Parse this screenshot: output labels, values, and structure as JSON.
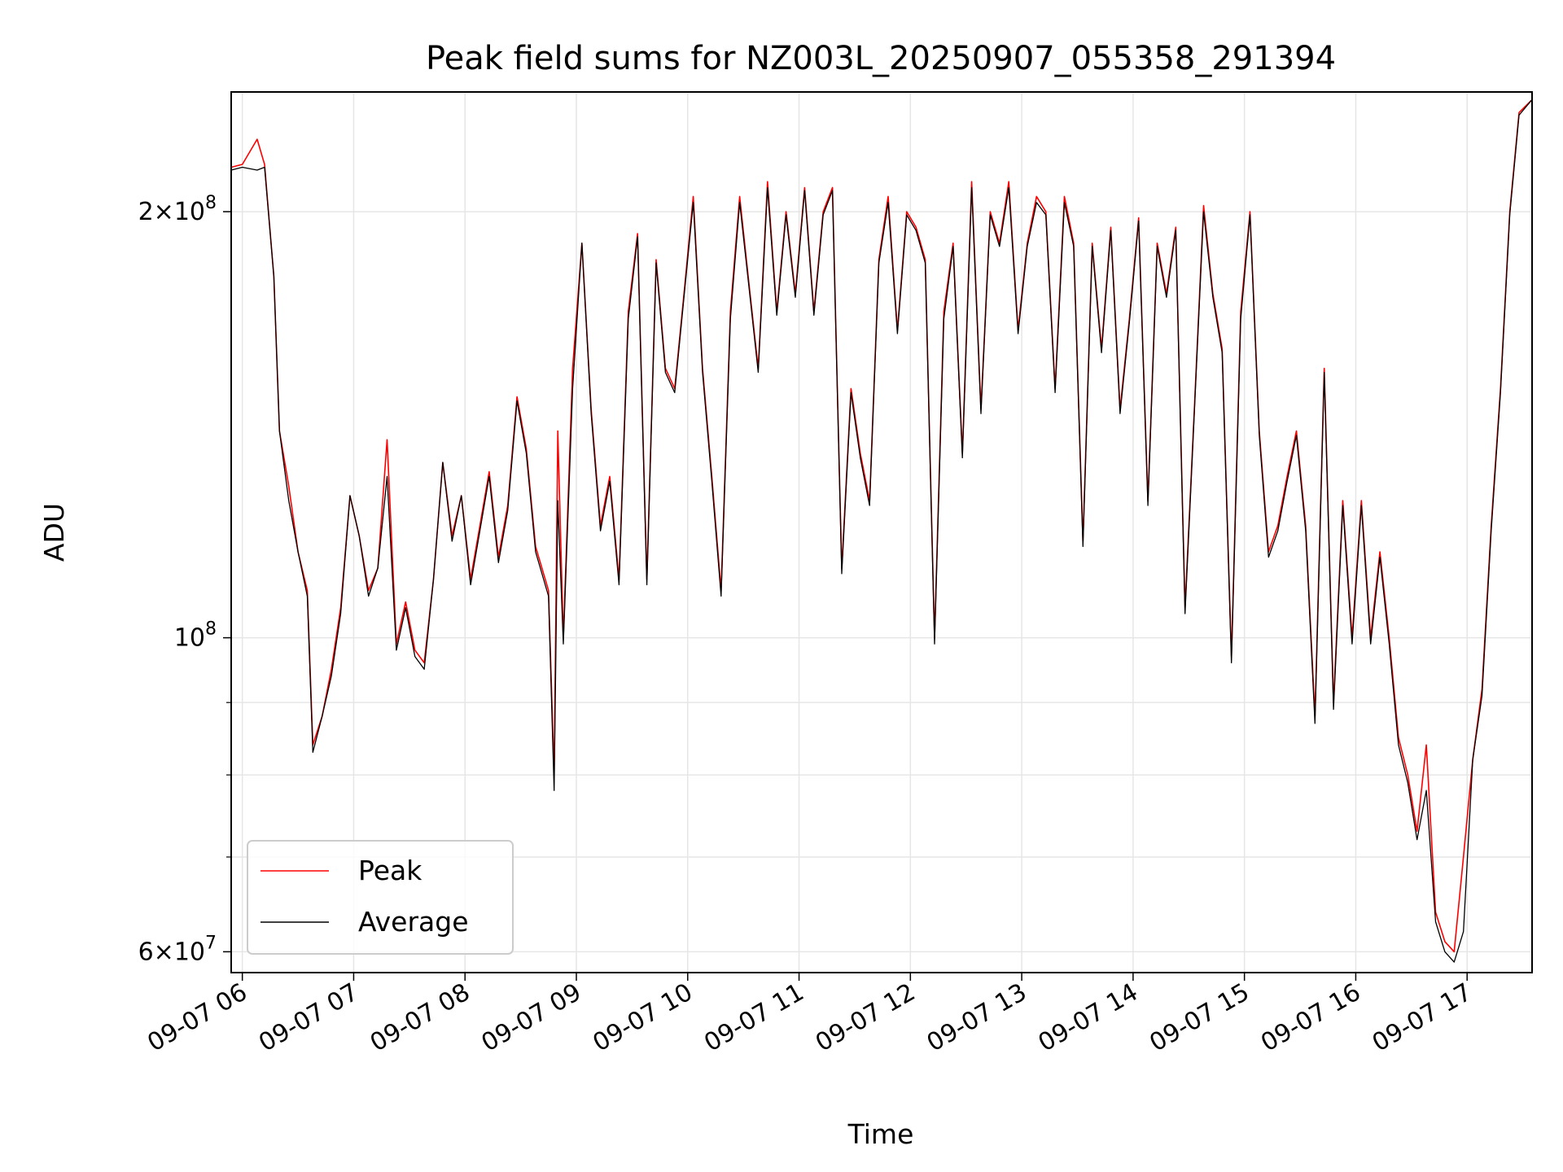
{
  "chart_data": {
    "type": "line",
    "title": "Peak field sums for NZ003L_20250907_055358_291394",
    "xlabel": "Time",
    "ylabel": "ADU",
    "xlim": [
      "09-07 05:54",
      "09-07 17:35"
    ],
    "ylim": [
      58000000,
      243000000
    ],
    "yscale": "log",
    "grid": true,
    "legend_position": "lower-left",
    "x_ticks": [
      "09-07 06",
      "09-07 07",
      "09-07 08",
      "09-07 09",
      "09-07 10",
      "09-07 11",
      "09-07 12",
      "09-07 13",
      "09-07 14",
      "09-07 15",
      "09-07 16",
      "09-07 17"
    ],
    "y_ticks": [
      {
        "value": 60000000,
        "mantissa": "6",
        "base": "10",
        "exponent": "7"
      },
      {
        "value": 100000000,
        "mantissa": "",
        "base": "10",
        "exponent": "8"
      },
      {
        "value": 200000000,
        "mantissa": "2",
        "base": "10",
        "exponent": "8"
      }
    ],
    "y_minor_ticks": [
      70000000,
      80000000,
      90000000
    ],
    "x": [
      "05:54",
      "06:00",
      "06:08",
      "06:12",
      "06:17",
      "06:20",
      "06:25",
      "06:30",
      "06:35",
      "06:38",
      "06:43",
      "06:48",
      "06:53",
      "06:58",
      "07:03",
      "07:08",
      "07:13",
      "07:18",
      "07:23",
      "07:28",
      "07:33",
      "07:38",
      "07:43",
      "07:48",
      "07:53",
      "07:58",
      "08:03",
      "08:08",
      "08:13",
      "08:18",
      "08:23",
      "08:28",
      "08:33",
      "08:38",
      "08:45",
      "08:48",
      "08:50",
      "08:53",
      "08:58",
      "09:03",
      "09:08",
      "09:13",
      "09:18",
      "09:23",
      "09:28",
      "09:33",
      "09:38",
      "09:43",
      "09:48",
      "09:53",
      "09:58",
      "10:03",
      "10:08",
      "10:13",
      "10:18",
      "10:23",
      "10:28",
      "10:33",
      "10:38",
      "10:43",
      "10:48",
      "10:53",
      "10:58",
      "11:03",
      "11:08",
      "11:13",
      "11:18",
      "11:23",
      "11:28",
      "11:33",
      "11:38",
      "11:43",
      "11:48",
      "11:53",
      "11:58",
      "12:03",
      "12:08",
      "12:13",
      "12:18",
      "12:23",
      "12:28",
      "12:33",
      "12:38",
      "12:43",
      "12:48",
      "12:53",
      "12:58",
      "13:03",
      "13:08",
      "13:13",
      "13:18",
      "13:23",
      "13:28",
      "13:33",
      "13:38",
      "13:43",
      "13:48",
      "13:53",
      "13:58",
      "14:03",
      "14:08",
      "14:13",
      "14:18",
      "14:23",
      "14:28",
      "14:33",
      "14:38",
      "14:43",
      "14:48",
      "14:53",
      "14:58",
      "15:03",
      "15:08",
      "15:13",
      "15:18",
      "15:23",
      "15:28",
      "15:33",
      "15:38",
      "15:43",
      "15:48",
      "15:53",
      "15:58",
      "16:03",
      "16:08",
      "16:13",
      "16:18",
      "16:23",
      "16:28",
      "16:33",
      "16:38",
      "16:43",
      "16:48",
      "16:53",
      "16:58",
      "17:03",
      "17:08",
      "17:13",
      "17:18",
      "17:23",
      "17:28",
      "17:35"
    ],
    "series": [
      {
        "name": "Peak",
        "color": "#ff0000",
        "values": [
          215000000,
          216000000,
          225000000,
          216000000,
          180000000,
          140000000,
          128000000,
          115000000,
          108000000,
          84000000,
          88000000,
          95000000,
          105000000,
          126000000,
          118000000,
          108000000,
          112000000,
          138000000,
          99000000,
          106000000,
          98000000,
          96000000,
          110000000,
          133000000,
          118000000,
          126000000,
          110000000,
          120000000,
          131000000,
          114000000,
          124000000,
          148000000,
          136000000,
          116000000,
          108000000,
          80000000,
          140000000,
          100000000,
          155000000,
          190000000,
          145000000,
          120000000,
          130000000,
          110000000,
          170000000,
          193000000,
          110000000,
          185000000,
          155000000,
          150000000,
          175000000,
          205000000,
          155000000,
          130000000,
          108000000,
          170000000,
          205000000,
          178000000,
          155000000,
          210000000,
          170000000,
          200000000,
          175000000,
          208000000,
          170000000,
          200000000,
          208000000,
          112000000,
          150000000,
          135000000,
          125000000,
          185000000,
          205000000,
          165000000,
          200000000,
          195000000,
          185000000,
          100000000,
          170000000,
          190000000,
          135000000,
          210000000,
          145000000,
          200000000,
          190000000,
          210000000,
          165000000,
          190000000,
          205000000,
          200000000,
          150000000,
          205000000,
          190000000,
          117000000,
          190000000,
          160000000,
          195000000,
          145000000,
          168000000,
          198000000,
          125000000,
          190000000,
          175000000,
          195000000,
          105000000,
          145000000,
          202000000,
          175000000,
          160000000,
          97000000,
          170000000,
          200000000,
          140000000,
          115000000,
          120000000,
          130000000,
          140000000,
          120000000,
          88000000,
          155000000,
          90000000,
          125000000,
          100000000,
          125000000,
          100000000,
          115000000,
          100000000,
          85000000,
          80000000,
          73000000,
          84000000,
          64000000,
          61000000,
          60000000,
          70000000,
          82000000,
          92000000,
          120000000,
          150000000,
          200000000,
          235000000,
          240000000
        ]
      },
      {
        "name": "Average",
        "color": "#000000",
        "values": [
          214000000,
          215000000,
          214000000,
          215000000,
          180000000,
          140000000,
          125000000,
          115000000,
          107000000,
          83000000,
          88000000,
          94000000,
          104000000,
          126000000,
          118000000,
          107000000,
          112000000,
          130000000,
          98000000,
          105000000,
          97000000,
          95000000,
          110000000,
          133000000,
          117000000,
          126000000,
          109000000,
          119000000,
          130000000,
          113000000,
          123000000,
          147000000,
          135000000,
          115000000,
          107000000,
          78000000,
          125000000,
          99000000,
          150000000,
          190000000,
          144000000,
          119000000,
          129000000,
          109000000,
          168000000,
          192000000,
          109000000,
          184000000,
          154000000,
          149000000,
          174000000,
          203000000,
          154000000,
          129000000,
          107000000,
          168000000,
          203000000,
          177000000,
          154000000,
          208000000,
          169000000,
          199000000,
          174000000,
          207000000,
          169000000,
          199000000,
          207000000,
          111000000,
          149000000,
          134000000,
          124000000,
          184000000,
          203000000,
          164000000,
          199000000,
          194000000,
          184000000,
          99000000,
          168000000,
          189000000,
          134000000,
          208000000,
          144000000,
          199000000,
          189000000,
          208000000,
          164000000,
          189000000,
          203000000,
          199000000,
          149000000,
          203000000,
          189000000,
          116000000,
          189000000,
          159000000,
          194000000,
          144000000,
          167000000,
          197000000,
          124000000,
          189000000,
          174000000,
          194000000,
          104000000,
          144000000,
          200000000,
          174000000,
          159000000,
          96000000,
          168000000,
          199000000,
          139000000,
          114000000,
          119000000,
          129000000,
          139000000,
          119000000,
          87000000,
          154000000,
          89000000,
          124000000,
          99000000,
          124000000,
          99000000,
          114000000,
          99000000,
          84000000,
          79000000,
          72000000,
          78000000,
          63000000,
          60000000,
          59000000,
          62000000,
          82000000,
          91000000,
          119000000,
          149000000,
          199000000,
          234000000,
          240000000
        ]
      }
    ]
  }
}
